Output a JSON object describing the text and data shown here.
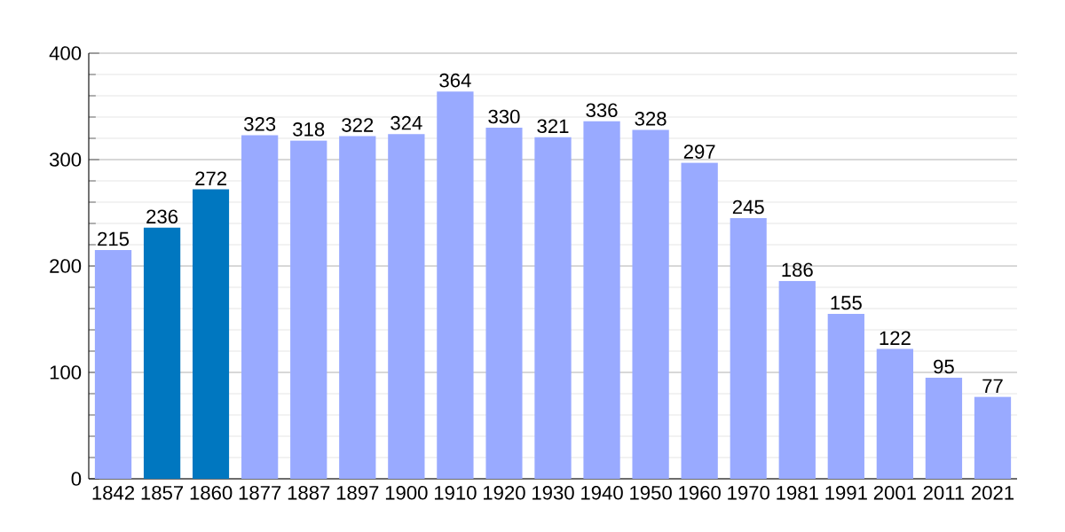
{
  "chart_data": {
    "type": "bar",
    "categories": [
      "1842",
      "1857",
      "1860",
      "1877",
      "1887",
      "1897",
      "1900",
      "1910",
      "1920",
      "1930",
      "1940",
      "1950",
      "1960",
      "1970",
      "1981",
      "1991",
      "2001",
      "2011",
      "2021"
    ],
    "values": [
      215,
      236,
      272,
      323,
      318,
      322,
      324,
      364,
      330,
      321,
      336,
      328,
      297,
      245,
      186,
      155,
      122,
      95,
      77
    ],
    "colors": [
      "#99aaff",
      "#0077c0",
      "#0077c0",
      "#99aaff",
      "#99aaff",
      "#99aaff",
      "#99aaff",
      "#99aaff",
      "#99aaff",
      "#99aaff",
      "#99aaff",
      "#99aaff",
      "#99aaff",
      "#99aaff",
      "#99aaff",
      "#99aaff",
      "#99aaff",
      "#99aaff",
      "#99aaff"
    ],
    "ylim": [
      0,
      400
    ],
    "yticks": [
      0,
      100,
      200,
      300,
      400
    ],
    "grid": "y",
    "data_labels": true
  }
}
